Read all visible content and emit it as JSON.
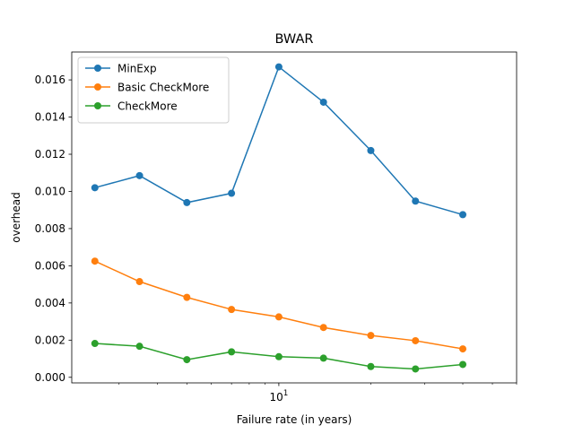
{
  "chart_data": {
    "type": "line",
    "title": "BWAR",
    "xlabel": "Failure rate (in years)",
    "ylabel": "overhead",
    "xscale": "log",
    "xlim": [
      2.1,
      60
    ],
    "ylim": [
      -0.0003,
      0.0175
    ],
    "x": [
      2.5,
      3.5,
      5,
      7,
      10,
      14,
      20,
      28,
      40
    ],
    "x_ticks": [
      {
        "value": 10,
        "base": "10",
        "exp": "1"
      }
    ],
    "y_ticks": [
      "0.000",
      "0.002",
      "0.004",
      "0.006",
      "0.008",
      "0.010",
      "0.012",
      "0.014",
      "0.016"
    ],
    "y_tick_values": [
      0,
      0.002,
      0.004,
      0.006,
      0.008,
      0.01,
      0.012,
      0.014,
      0.016
    ],
    "legend_position": "top-left",
    "grid": false,
    "series": [
      {
        "name": "MinExp",
        "color": "#1f77b4",
        "values": [
          0.0102,
          0.01085,
          0.0094,
          0.0099,
          0.0167,
          0.0148,
          0.0122,
          0.00948,
          0.00875
        ]
      },
      {
        "name": "Basic CheckMore",
        "color": "#ff7f0e",
        "values": [
          0.00625,
          0.00515,
          0.0043,
          0.00365,
          0.00325,
          0.00268,
          0.00225,
          0.00197,
          0.00153
        ]
      },
      {
        "name": "CheckMore",
        "color": "#2ca02c",
        "values": [
          0.00182,
          0.00167,
          0.00095,
          0.00137,
          0.00111,
          0.00103,
          0.00058,
          0.00045,
          0.00069
        ]
      }
    ]
  }
}
